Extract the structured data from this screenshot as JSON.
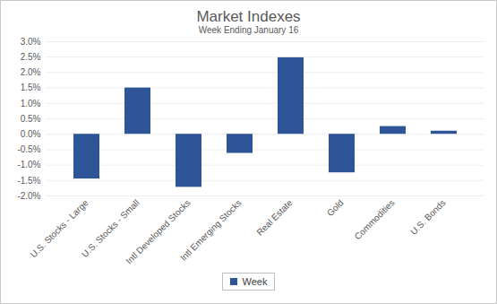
{
  "chart_data": {
    "type": "bar",
    "title": "Market Indexes",
    "subtitle": "Week Ending January 16",
    "categories": [
      "U.S. Stocks - Large",
      "U.S. Stocks - Small",
      "Intl Developed Stocks",
      "Intl Emerging Stocks",
      "Real Estate",
      "Gold",
      "Commodities",
      "U.S. Bonds"
    ],
    "series": [
      {
        "name": "Week",
        "color": "#2e5597",
        "values": [
          -1.45,
          1.5,
          -1.72,
          -0.62,
          2.48,
          -1.25,
          0.25,
          0.1
        ]
      }
    ],
    "ylim": [
      -2,
      3
    ],
    "yticks": [
      {
        "value": -2,
        "label": "-2.0%"
      },
      {
        "value": -1.5,
        "label": "-1.5%"
      },
      {
        "value": -1,
        "label": "-1.0%"
      },
      {
        "value": -0.5,
        "label": "-0.5%"
      },
      {
        "value": 0,
        "label": "0.0%"
      },
      {
        "value": 0.5,
        "label": "0.5%"
      },
      {
        "value": 1,
        "label": "1.0%"
      },
      {
        "value": 1.5,
        "label": "1.5%"
      },
      {
        "value": 2,
        "label": "2.0%"
      },
      {
        "value": 2.5,
        "label": "2.5%"
      },
      {
        "value": 3,
        "label": "3.0%"
      }
    ],
    "grid": true,
    "legend": "bottom"
  }
}
